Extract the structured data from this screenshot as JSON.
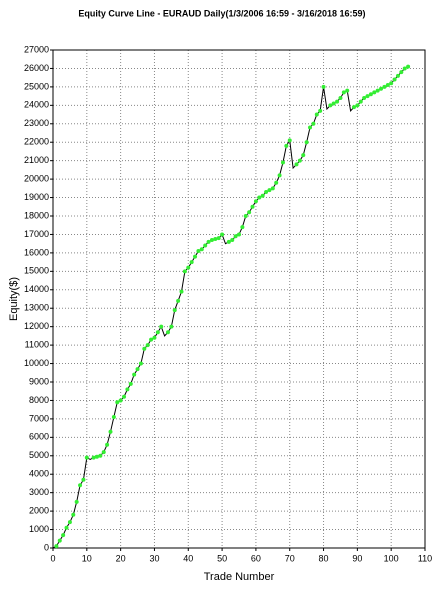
{
  "chart_data": {
    "type": "line",
    "title": "Equity Curve Line - EURAUD Daily(1/3/2006 16:59 - 3/16/2018 16:59)",
    "x_label": "Trade Number",
    "y_label": "Equity($)",
    "x": [
      0,
      1,
      2,
      3,
      4,
      5,
      6,
      7,
      8,
      9,
      10,
      11,
      12,
      13,
      14,
      15,
      16,
      17,
      18,
      19,
      20,
      21,
      22,
      23,
      24,
      25,
      26,
      27,
      28,
      29,
      30,
      31,
      32,
      33,
      34,
      35,
      36,
      37,
      38,
      39,
      40,
      41,
      42,
      43,
      44,
      45,
      46,
      47,
      48,
      49,
      50,
      51,
      52,
      53,
      54,
      55,
      56,
      57,
      58,
      59,
      60,
      61,
      62,
      63,
      64,
      65,
      66,
      67,
      68,
      69,
      70,
      71,
      72,
      73,
      74,
      75,
      76,
      77,
      78,
      79,
      80,
      81,
      82,
      83,
      84,
      85,
      86,
      87,
      88,
      89,
      90,
      91,
      92,
      93,
      94,
      95,
      96,
      97,
      98,
      99,
      100,
      101,
      102,
      103,
      104,
      105
    ],
    "series": [
      {
        "name": "Equity",
        "color": "#000000",
        "marker_color": "#33ee33",
        "values": [
          0,
          100,
          400,
          700,
          1100,
          1400,
          1800,
          2500,
          3400,
          3700,
          4900,
          4800,
          4900,
          4950,
          5000,
          5200,
          5600,
          6300,
          7100,
          7900,
          8000,
          8200,
          8600,
          8900,
          9400,
          9700,
          10000,
          10800,
          11000,
          11300,
          11400,
          11700,
          12000,
          11500,
          11700,
          12000,
          12900,
          13400,
          13900,
          15000,
          15200,
          15500,
          15800,
          16100,
          16200,
          16400,
          16600,
          16700,
          16750,
          16800,
          17000,
          16500,
          16600,
          16700,
          16900,
          17000,
          17400,
          18000,
          18200,
          18500,
          18800,
          19000,
          19100,
          19300,
          19400,
          19500,
          19800,
          20200,
          20900,
          21800,
          22100,
          20600,
          20800,
          21000,
          21300,
          22000,
          22800,
          23000,
          23500,
          23700,
          25000,
          23800,
          24000,
          24100,
          24200,
          24400,
          24700,
          24800,
          23700,
          23900,
          24000,
          24200,
          24400,
          24500,
          24600,
          24700,
          24800,
          24900,
          25000,
          25100,
          25200,
          25400,
          25600,
          25800,
          26000,
          26100
        ]
      }
    ],
    "xlim": [
      0,
      110
    ],
    "xticks": [
      0,
      10,
      20,
      30,
      40,
      50,
      60,
      70,
      80,
      90,
      100,
      110
    ],
    "ylim": [
      0,
      27000
    ],
    "yticks": [
      0,
      1000,
      2000,
      3000,
      4000,
      5000,
      6000,
      7000,
      8000,
      9000,
      10000,
      11000,
      12000,
      13000,
      14000,
      15000,
      16000,
      17000,
      18000,
      19000,
      20000,
      21000,
      22000,
      23000,
      24000,
      25000,
      26000,
      27000
    ],
    "grid": true
  }
}
